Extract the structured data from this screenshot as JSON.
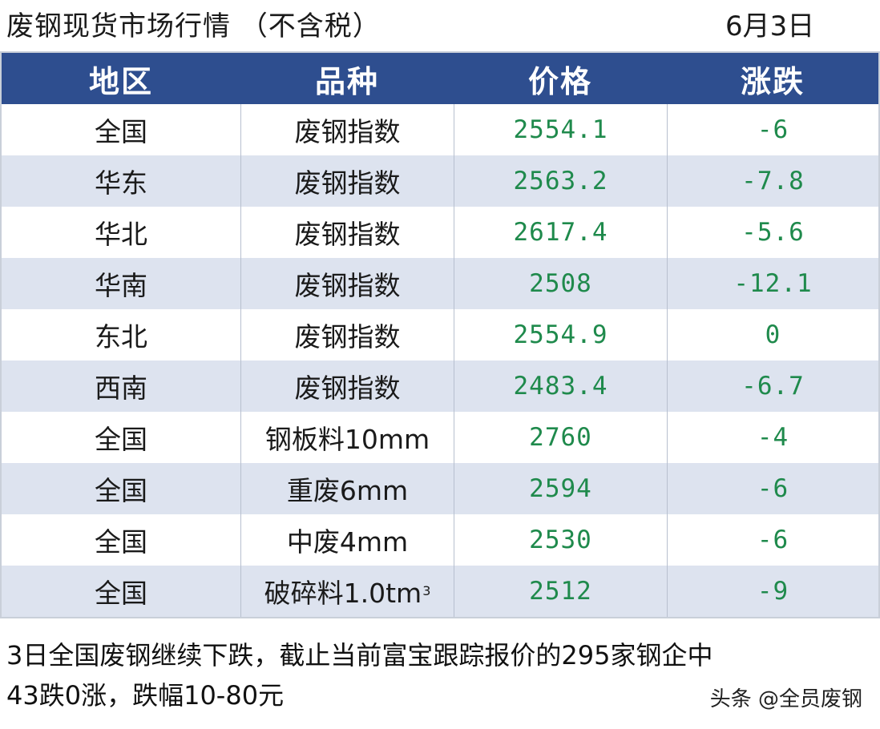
{
  "title": {
    "text": "废钢现货市场行情  （不含税）",
    "date": "6月3日"
  },
  "table": {
    "headers": [
      "地区",
      "品种",
      "价格",
      "涨跌"
    ],
    "rows": [
      {
        "region": "全国",
        "product": "废钢指数",
        "price": "2554.1",
        "change": "-6"
      },
      {
        "region": "华东",
        "product": "废钢指数",
        "price": "2563.2",
        "change": "-7.8"
      },
      {
        "region": "华北",
        "product": "废钢指数",
        "price": "2617.4",
        "change": "-5.6"
      },
      {
        "region": "华南",
        "product": "废钢指数",
        "price": "2508",
        "change": "-12.1"
      },
      {
        "region": "东北",
        "product": "废钢指数",
        "price": "2554.9",
        "change": "0"
      },
      {
        "region": "西南",
        "product": "废钢指数",
        "price": "2483.4",
        "change": "-6.7"
      },
      {
        "region": "全国",
        "product": "钢板料10mm",
        "price": "2760",
        "change": "-4"
      },
      {
        "region": "全国",
        "product": "重废6mm",
        "price": "2594",
        "change": "-6"
      },
      {
        "region": "全国",
        "product": "中废4mm",
        "price": "2530",
        "change": "-6"
      },
      {
        "region": "全国",
        "product": "破碎料1.0tm",
        "product_sup": "3",
        "price": "2512",
        "change": "-9"
      }
    ]
  },
  "note": {
    "line1": "3日全国废钢继续下跌，截止当前富宝跟踪报价的295家钢企中",
    "line2": "43跌0涨，跌幅10-80元"
  },
  "watermark": "头条 @全员废钢",
  "colors": {
    "header_bg": "#2e4e8f",
    "alt_row_bg": "#dde3ef",
    "number_green": "#1f8a4c"
  }
}
